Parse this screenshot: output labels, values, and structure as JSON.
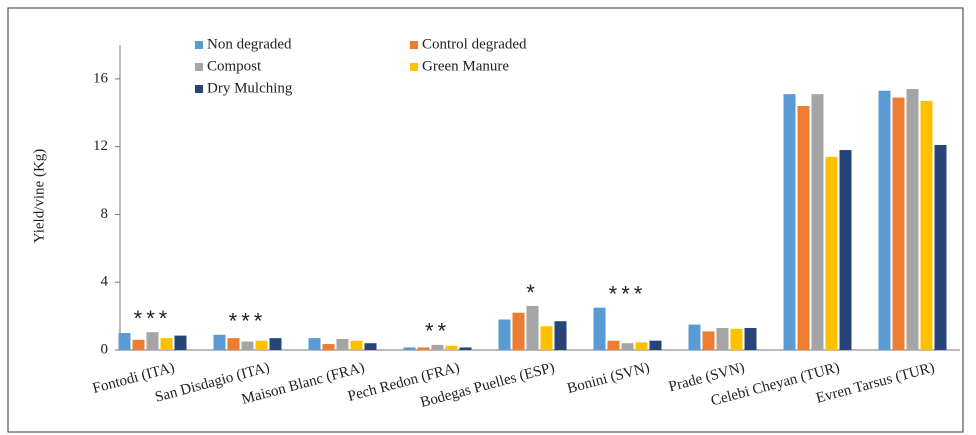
{
  "chart_data": {
    "type": "bar",
    "ylabel": "Yield/vine (Kg)",
    "categories": [
      "Fontodi (ITA)",
      "San Disdagio (ITA)",
      "Maison Blanc (FRA)",
      "Pech Redon (FRA)",
      "Bodegas Puelles (ESP)",
      "Bonini (SVN)",
      "Prade (SVN)",
      "Celebi Cheyan (TUR)",
      "Evren Tarsus (TUR)"
    ],
    "series": [
      {
        "name": "Non degraded",
        "color": "#5b9bd5",
        "values": [
          1.0,
          0.9,
          0.7,
          0.15,
          1.8,
          2.5,
          1.5,
          15.1,
          15.3
        ]
      },
      {
        "name": "Control degraded",
        "color": "#ed7d31",
        "values": [
          0.6,
          0.7,
          0.35,
          0.15,
          2.2,
          0.55,
          1.1,
          14.4,
          14.9
        ]
      },
      {
        "name": "Compost",
        "color": "#a5a5a5",
        "values": [
          1.05,
          0.5,
          0.65,
          0.3,
          2.6,
          0.4,
          1.3,
          15.1,
          15.4
        ]
      },
      {
        "name": "Green Manure",
        "color": "#ffc000",
        "values": [
          0.7,
          0.55,
          0.55,
          0.25,
          1.4,
          0.45,
          1.25,
          11.4,
          14.7
        ]
      },
      {
        "name": "Dry Mulching",
        "color": "#264478",
        "values": [
          0.85,
          0.7,
          0.4,
          0.15,
          1.7,
          0.55,
          1.3,
          11.8,
          12.1
        ]
      }
    ],
    "significance": [
      "***",
      "***",
      null,
      "**",
      "*",
      "***",
      null,
      null,
      null
    ],
    "ylim": [
      0,
      18
    ],
    "yticks": [
      0,
      4,
      8,
      12,
      16
    ],
    "grid": false
  }
}
